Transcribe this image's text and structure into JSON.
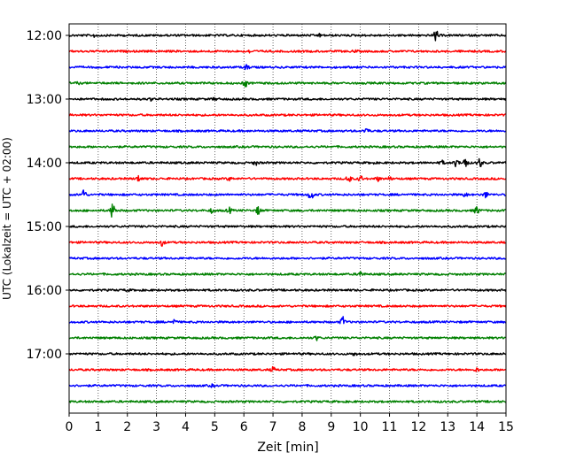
{
  "chart_data": {
    "type": "line",
    "title": "",
    "xlabel": "Zeit  [min]",
    "ylabel": "UTC (Lokalzeit = UTC + 02:00)",
    "xlim": [
      0,
      15
    ],
    "x_ticks": [
      "0",
      "1",
      "2",
      "3",
      "4",
      "5",
      "6",
      "7",
      "8",
      "9",
      "10",
      "11",
      "12",
      "13",
      "14",
      "15"
    ],
    "y_ticks": [
      "12:00",
      "13:00",
      "14:00",
      "15:00",
      "16:00",
      "17:00"
    ],
    "grid": "vertical dotted lines at each minute",
    "trace_interval_minutes": 15,
    "trace_colors": [
      "#000000",
      "#ff0000",
      "#0000ff",
      "#008000"
    ],
    "traces": [
      {
        "start": "12:00",
        "color": "#000000",
        "events": [
          [
            0.9,
            0.9
          ],
          [
            8.6,
            0.6
          ],
          [
            12.6,
            3.0
          ]
        ]
      },
      {
        "start": "12:15",
        "color": "#ff0000",
        "events": [
          [
            6.2,
            0.6
          ],
          [
            9.8,
            0.5
          ]
        ]
      },
      {
        "start": "12:30",
        "color": "#0000ff",
        "events": [
          [
            6.1,
            1.4
          ]
        ]
      },
      {
        "start": "12:45",
        "color": "#008000",
        "events": [
          [
            0.3,
            0.4
          ],
          [
            6.05,
            1.8
          ]
        ]
      },
      {
        "start": "13:00",
        "color": "#000000",
        "events": [
          [
            2.8,
            0.6
          ],
          [
            5.0,
            0.5
          ]
        ]
      },
      {
        "start": "13:15",
        "color": "#ff0000",
        "events": []
      },
      {
        "start": "13:30",
        "color": "#0000ff",
        "events": [
          [
            10.2,
            1.6
          ]
        ]
      },
      {
        "start": "13:45",
        "color": "#008000",
        "events": []
      },
      {
        "start": "14:00",
        "color": "#000000",
        "events": [
          [
            6.4,
            1.2
          ],
          [
            10.4,
            0.5
          ],
          [
            12.8,
            1.0
          ],
          [
            13.3,
            2.0
          ],
          [
            13.6,
            3.0
          ],
          [
            14.1,
            2.6
          ]
        ]
      },
      {
        "start": "14:15",
        "color": "#ff0000",
        "events": [
          [
            2.4,
            1.8
          ],
          [
            5.5,
            0.8
          ],
          [
            9.6,
            2.4
          ],
          [
            10.0,
            1.5
          ],
          [
            10.6,
            1.0
          ],
          [
            11.0,
            0.8
          ]
        ]
      },
      {
        "start": "14:30",
        "color": "#0000ff",
        "events": [
          [
            0.5,
            3.0
          ],
          [
            8.3,
            3.0
          ],
          [
            13.6,
            1.0
          ],
          [
            14.3,
            1.4
          ]
        ]
      },
      {
        "start": "14:45",
        "color": "#008000",
        "events": [
          [
            1.5,
            4.5
          ],
          [
            4.9,
            1.0
          ],
          [
            5.5,
            1.4
          ],
          [
            6.5,
            2.0
          ],
          [
            14.0,
            2.2
          ]
        ]
      },
      {
        "start": "15:00",
        "color": "#000000",
        "events": []
      },
      {
        "start": "15:15",
        "color": "#ff0000",
        "events": [
          [
            3.2,
            1.6
          ]
        ]
      },
      {
        "start": "15:30",
        "color": "#0000ff",
        "events": []
      },
      {
        "start": "15:45",
        "color": "#008000",
        "events": [
          [
            10.0,
            1.6
          ]
        ]
      },
      {
        "start": "16:00",
        "color": "#000000",
        "events": [
          [
            2.0,
            0.5
          ]
        ]
      },
      {
        "start": "16:15",
        "color": "#ff0000",
        "events": []
      },
      {
        "start": "16:30",
        "color": "#0000ff",
        "events": [
          [
            3.6,
            1.2
          ],
          [
            9.4,
            2.6
          ]
        ]
      },
      {
        "start": "16:45",
        "color": "#008000",
        "events": [
          [
            8.5,
            1.0
          ]
        ]
      },
      {
        "start": "17:00",
        "color": "#000000",
        "events": [
          [
            9.8,
            0.8
          ]
        ]
      },
      {
        "start": "17:15",
        "color": "#ff0000",
        "events": [
          [
            7.0,
            1.2
          ],
          [
            14.0,
            0.8
          ]
        ]
      },
      {
        "start": "17:30",
        "color": "#0000ff",
        "events": [
          [
            4.9,
            0.5
          ]
        ]
      },
      {
        "start": "17:45",
        "color": "#008000",
        "events": []
      }
    ]
  }
}
